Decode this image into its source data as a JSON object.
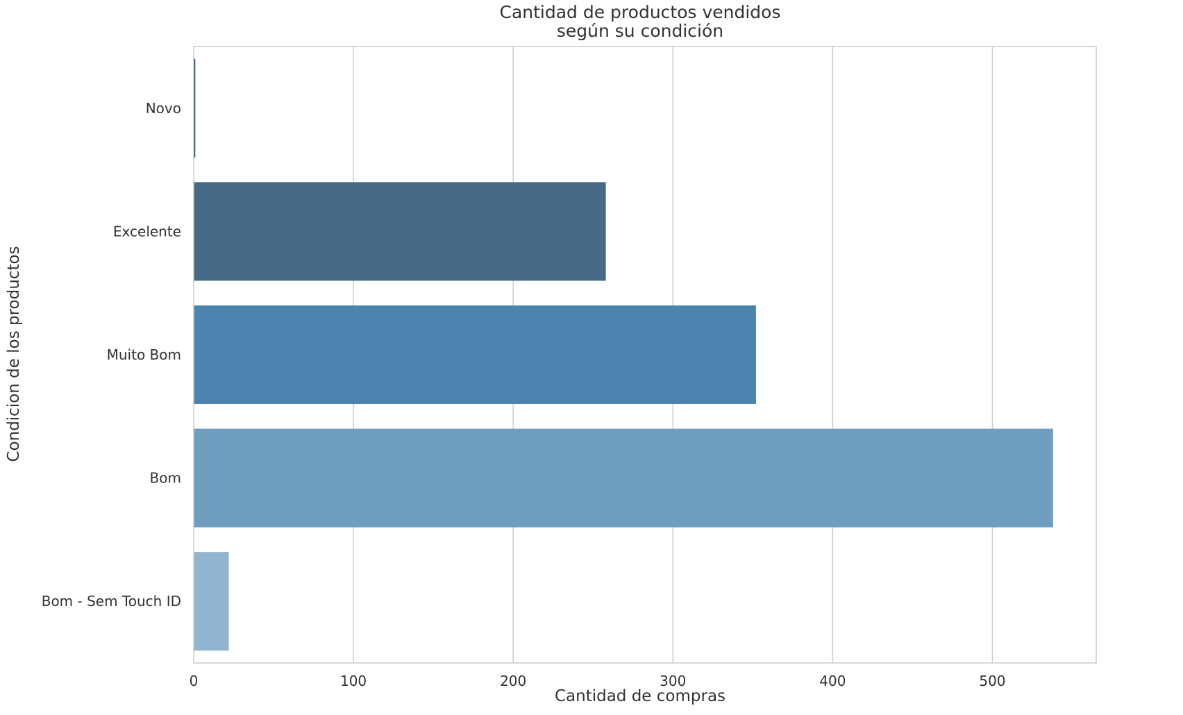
{
  "chart_data": {
    "type": "bar",
    "orientation": "horizontal",
    "title": [
      "Cantidad de productos vendidos",
      "según su condición"
    ],
    "xlabel": "Cantidad de compras",
    "ylabel": "Condicion de los productos",
    "categories": [
      "Novo",
      "Excelente",
      "Muito Bom",
      "Bom",
      "Bom - Sem Touch ID"
    ],
    "values": [
      1,
      258,
      352,
      538,
      22
    ],
    "colors": [
      "#2f4b6e",
      "#466a86",
      "#4b84ae",
      "#6e9fc1",
      "#91b4d0"
    ],
    "xlim": [
      0,
      565
    ],
    "xticks": [
      0,
      100,
      200,
      300,
      400,
      500
    ],
    "grid": true,
    "legend": false
  }
}
